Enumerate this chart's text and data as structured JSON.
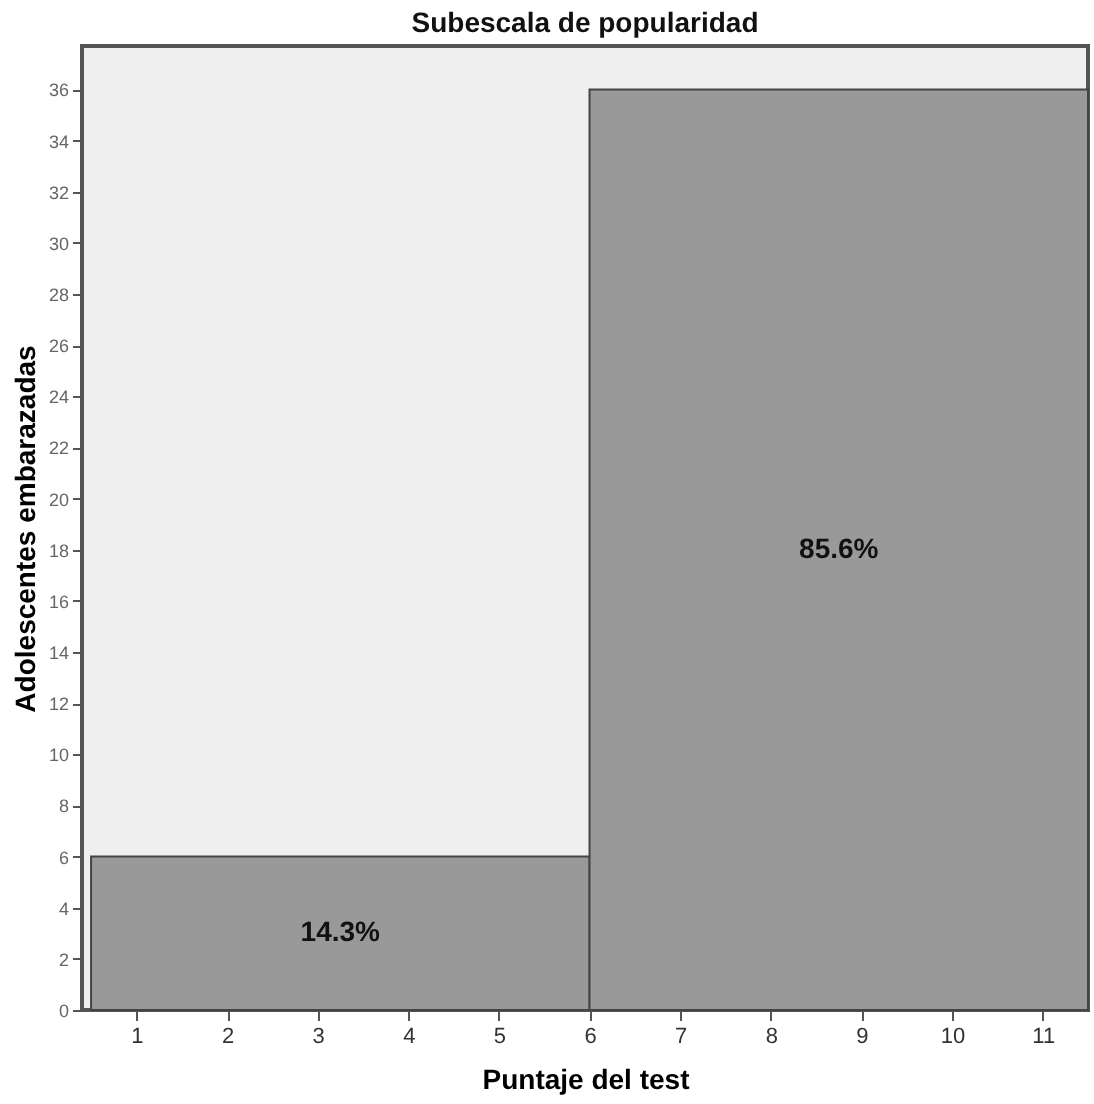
{
  "chart_data": {
    "type": "histogram",
    "title": "Subescala de popularidad",
    "xlabel": "Puntaje del test",
    "ylabel": "Adolescentes embarazadas",
    "bins": [
      0.5,
      6,
      11.5
    ],
    "values": [
      6,
      36
    ],
    "color": "#999999",
    "xlim": [
      0.4,
      11.5
    ],
    "xticks": [
      1,
      2,
      3,
      4,
      5,
      6,
      7,
      8,
      9,
      10,
      11
    ],
    "ylim": [
      0,
      37.7
    ],
    "yticks": [
      0,
      2,
      4,
      6,
      8,
      10,
      12,
      14,
      16,
      18,
      20,
      22,
      24,
      26,
      28,
      30,
      32,
      34,
      36
    ],
    "annotations": [
      "14.3%",
      "85.6%"
    ],
    "grid": false
  }
}
